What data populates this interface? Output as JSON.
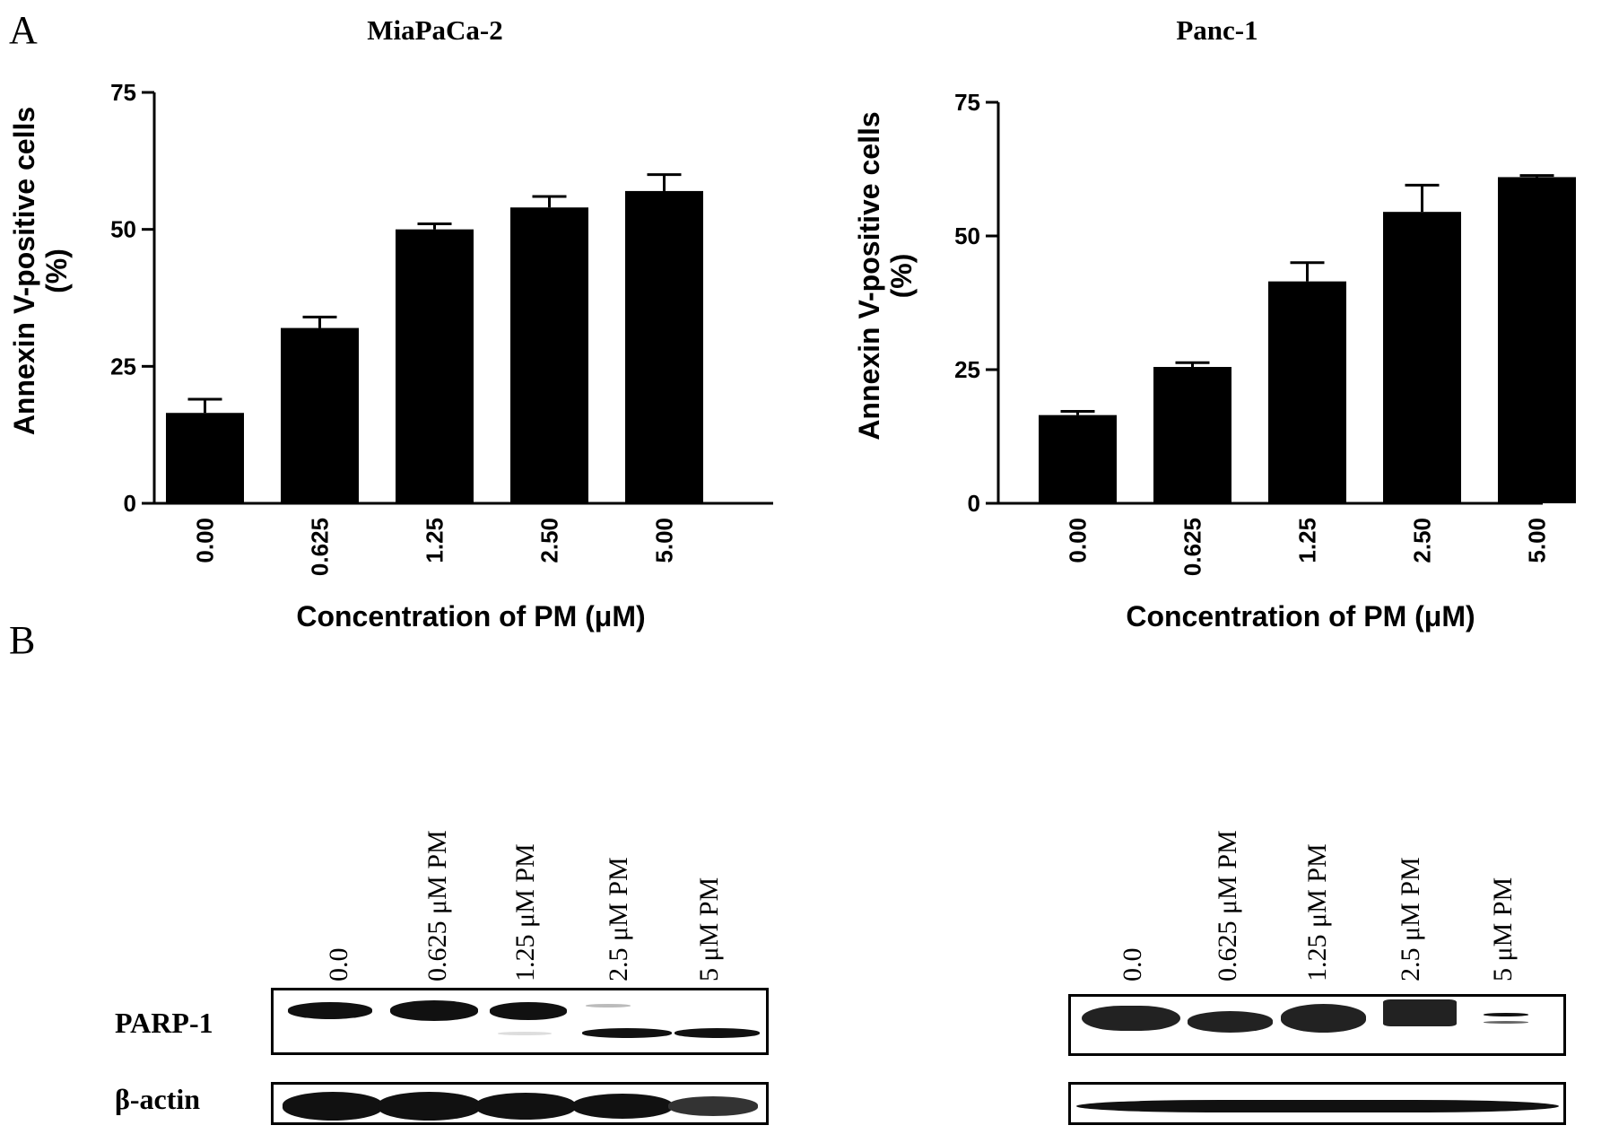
{
  "panels": {
    "a": "A",
    "b": "B"
  },
  "chart_data": [
    {
      "type": "bar",
      "title": "MiaPaCa-2",
      "categories": [
        "0.00",
        "0.625",
        "1.25",
        "2.50",
        "5.00"
      ],
      "values": [
        16.5,
        32,
        50,
        54,
        57
      ],
      "errors": [
        2.5,
        2,
        1,
        2,
        3
      ],
      "xlabel": "Concentration of PM (μM)",
      "ylabel_line1": "Annexin V-positive cells",
      "ylabel_line2": "(%)",
      "yticks": [
        "0",
        "25",
        "50",
        "75"
      ],
      "ylim": [
        0,
        75
      ],
      "bar_color": "#000000"
    },
    {
      "type": "bar",
      "title": "Panc-1",
      "categories": [
        "0.00",
        "0.625",
        "1.25",
        "2.50",
        "5.00"
      ],
      "values": [
        16.5,
        25.5,
        41.5,
        54.5,
        61
      ],
      "errors": [
        0.7,
        0.8,
        3.5,
        5,
        0.3
      ],
      "xlabel": "Concentration of PM (μM)",
      "ylabel_line1": "Annexin V-positive cells",
      "ylabel_line2": "(%)",
      "yticks": [
        "0",
        "25",
        "50",
        "75"
      ],
      "ylim": [
        0,
        75
      ],
      "bar_color": "#000000"
    }
  ],
  "blots": {
    "row_labels": {
      "parp": "PARP-1",
      "actin": "β-actin"
    },
    "left": {
      "lanes": [
        "0.0",
        "0.625 μM PM",
        "1.25 μM PM",
        "2.5 μM PM",
        "5 μM PM"
      ]
    },
    "right": {
      "lanes": [
        "0.0",
        "0.625 μM PM",
        "1.25 μM PM",
        "2.5 μM PM",
        "5 μM PM"
      ]
    }
  }
}
